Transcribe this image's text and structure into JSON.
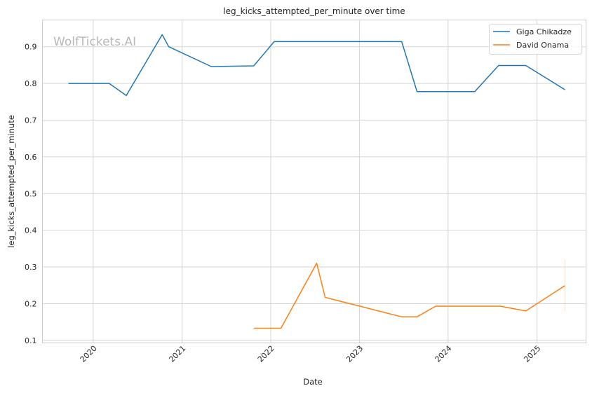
{
  "chart_data": {
    "type": "line",
    "title": "leg_kicks_attempted_per_minute over time",
    "xlabel": "Date",
    "ylabel": "leg_kicks_attempted_per_minute",
    "watermark": "WolfTickets.AI",
    "x_ticks": [
      "2020",
      "2021",
      "2022",
      "2023",
      "2024",
      "2025"
    ],
    "y_ticks": [
      "0.1",
      "0.2",
      "0.3",
      "0.4",
      "0.5",
      "0.6",
      "0.7",
      "0.8",
      "0.9"
    ],
    "xlim": [
      "2019-06-06",
      "2025-07-22"
    ],
    "ylim": [
      0.093,
      0.973
    ],
    "grid": true,
    "legend_position": "top-right",
    "series": [
      {
        "name": "Giga Chikadze",
        "color": "#1f77b4",
        "points": [
          [
            "2019-09-21",
            0.8
          ],
          [
            "2020-03-07",
            0.8
          ],
          [
            "2020-05-16",
            0.767
          ],
          [
            "2020-10-11",
            0.933
          ],
          [
            "2020-11-07",
            0.9
          ],
          [
            "2021-05-01",
            0.846
          ],
          [
            "2021-10-23",
            0.848
          ],
          [
            "2022-01-15",
            0.914
          ],
          [
            "2023-06-24",
            0.914
          ],
          [
            "2023-08-26",
            0.778
          ],
          [
            "2024-04-20",
            0.778
          ],
          [
            "2024-07-27",
            0.849
          ],
          [
            "2024-11-16",
            0.849
          ],
          [
            "2025-04-26",
            0.783
          ]
        ]
      },
      {
        "name": "David Onama",
        "color": "#ff7f0e",
        "points": [
          [
            "2021-10-23",
            0.133
          ],
          [
            "2022-02-12",
            0.133
          ],
          [
            "2022-07-09",
            0.31
          ],
          [
            "2022-08-13",
            0.217
          ],
          [
            "2023-06-24",
            0.164
          ],
          [
            "2023-08-26",
            0.164
          ],
          [
            "2023-11-11",
            0.193
          ],
          [
            "2024-08-03",
            0.193
          ],
          [
            "2024-11-16",
            0.18
          ],
          [
            "2025-04-26",
            0.249
          ]
        ],
        "error_band": {
          "x": "2025-04-26",
          "low": 0.18,
          "high": 0.32
        }
      }
    ]
  }
}
